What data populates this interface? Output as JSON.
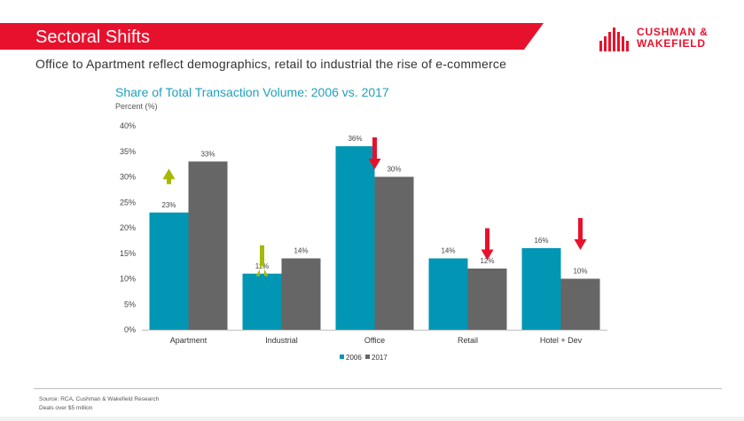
{
  "header": {
    "title": "Sectoral Shifts",
    "subtitle": "Office to Apartment reflect demographics, retail to industrial the rise of e-commerce",
    "logo_line1": "CUSHMAN &",
    "logo_line2": "WAKEFIELD",
    "accent_color": "#e8112d"
  },
  "chart_data": {
    "type": "bar",
    "title": "Share of Total Transaction Volume: 2006 vs. 2017",
    "ylabel": "Percent (%)",
    "xlabel": "",
    "categories": [
      "Apartment",
      "Industrial",
      "Office",
      "Retail",
      "Hotel + Dev"
    ],
    "series": [
      {
        "name": "2006",
        "color": "#0096b4",
        "values": [
          23,
          11,
          36,
          14,
          16
        ],
        "labels": [
          "23%",
          "11%",
          "36%",
          "14%",
          "16%"
        ]
      },
      {
        "name": "2017",
        "color": "#666666",
        "values": [
          33,
          14,
          30,
          12,
          10
        ],
        "labels": [
          "33%",
          "14%",
          "30%",
          "12%",
          "10%"
        ]
      }
    ],
    "ylim": [
      0,
      40
    ],
    "yticks": [
      "0%",
      "5%",
      "10%",
      "15%",
      "20%",
      "25%",
      "30%",
      "35%",
      "40%"
    ],
    "grid": false,
    "legend_position": "bottom",
    "trend_arrows": [
      {
        "category": "Apartment",
        "direction": "up",
        "color": "#a6b800"
      },
      {
        "category": "Industrial",
        "direction": "up",
        "color": "#a6b800"
      },
      {
        "category": "Office",
        "direction": "down",
        "color": "#e8112d"
      },
      {
        "category": "Retail",
        "direction": "down",
        "color": "#e8112d"
      },
      {
        "category": "Hotel + Dev",
        "direction": "down",
        "color": "#e8112d"
      }
    ]
  },
  "footer": {
    "source": "Source: RCA, Cushman & Wakefield Research",
    "note": "Deals over $5 million"
  }
}
